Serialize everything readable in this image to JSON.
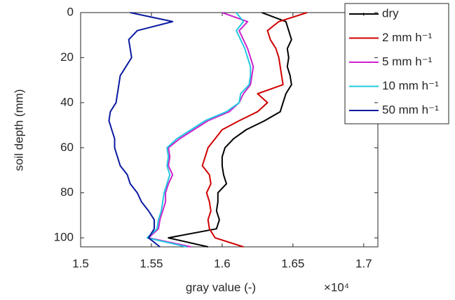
{
  "chart_data": {
    "type": "line",
    "orientation": "vertical-profile",
    "xlabel": "gray value (-)",
    "ylabel": "soil depth (mm)",
    "x_multiplier": "×10⁴",
    "y": [
      0,
      4,
      8,
      12,
      16,
      20,
      24,
      28,
      32,
      36,
      40,
      44,
      48,
      52,
      56,
      60,
      64,
      68,
      72,
      76,
      80,
      84,
      88,
      92,
      96,
      100,
      104
    ],
    "series": [
      {
        "name": "dry",
        "color": "#000000",
        "values": [
          1.628,
          1.645,
          1.647,
          1.649,
          1.646,
          1.647,
          1.646,
          1.648,
          1.649,
          1.645,
          1.643,
          1.641,
          1.63,
          1.617,
          1.608,
          1.602,
          1.6,
          1.6,
          1.601,
          1.603,
          1.597,
          1.597,
          1.596,
          1.598,
          1.596,
          1.562,
          1.59
        ]
      },
      {
        "name": "2 mm h⁻¹",
        "color": "#d00000",
        "values": [
          1.66,
          1.64,
          1.632,
          1.634,
          1.638,
          1.64,
          1.641,
          1.642,
          1.643,
          1.625,
          1.632,
          1.625,
          1.612,
          1.6,
          1.595,
          1.59,
          1.588,
          1.586,
          1.591,
          1.592,
          1.589,
          1.591,
          1.592,
          1.59,
          1.591,
          1.595,
          1.615
        ]
      },
      {
        "name": "5 mm h⁻¹",
        "color": "#cc22cc",
        "values": [
          1.6,
          1.618,
          1.612,
          1.615,
          1.618,
          1.62,
          1.622,
          1.621,
          1.62,
          1.615,
          1.612,
          1.605,
          1.59,
          1.58,
          1.57,
          1.562,
          1.563,
          1.562,
          1.565,
          1.562,
          1.56,
          1.56,
          1.558,
          1.556,
          1.555,
          1.548,
          1.578
        ]
      },
      {
        "name": "10 mm h⁻¹",
        "color": "#22c8e0",
        "values": [
          1.61,
          1.615,
          1.61,
          1.613,
          1.616,
          1.618,
          1.62,
          1.62,
          1.619,
          1.613,
          1.612,
          1.603,
          1.588,
          1.578,
          1.568,
          1.561,
          1.562,
          1.561,
          1.563,
          1.561,
          1.559,
          1.558,
          1.557,
          1.555,
          1.554,
          1.547,
          1.575
        ]
      },
      {
        "name": "50 mm h⁻¹",
        "color": "#0a1aa0",
        "values": [
          1.535,
          1.565,
          1.54,
          1.534,
          1.535,
          1.536,
          1.532,
          1.528,
          1.527,
          1.526,
          1.525,
          1.521,
          1.52,
          1.522,
          1.524,
          1.524,
          1.526,
          1.528,
          1.533,
          1.535,
          1.54,
          1.543,
          1.548,
          1.552,
          1.552,
          1.548,
          1.556
        ]
      }
    ],
    "xlim": [
      1.5,
      1.71
    ],
    "xticks": [
      1.5,
      1.55,
      1.6,
      1.65,
      1.7
    ],
    "ylim": [
      0,
      104
    ],
    "yticks": [
      0,
      20,
      40,
      60,
      80,
      100
    ],
    "y_inverted": true,
    "legend": "top-right"
  }
}
